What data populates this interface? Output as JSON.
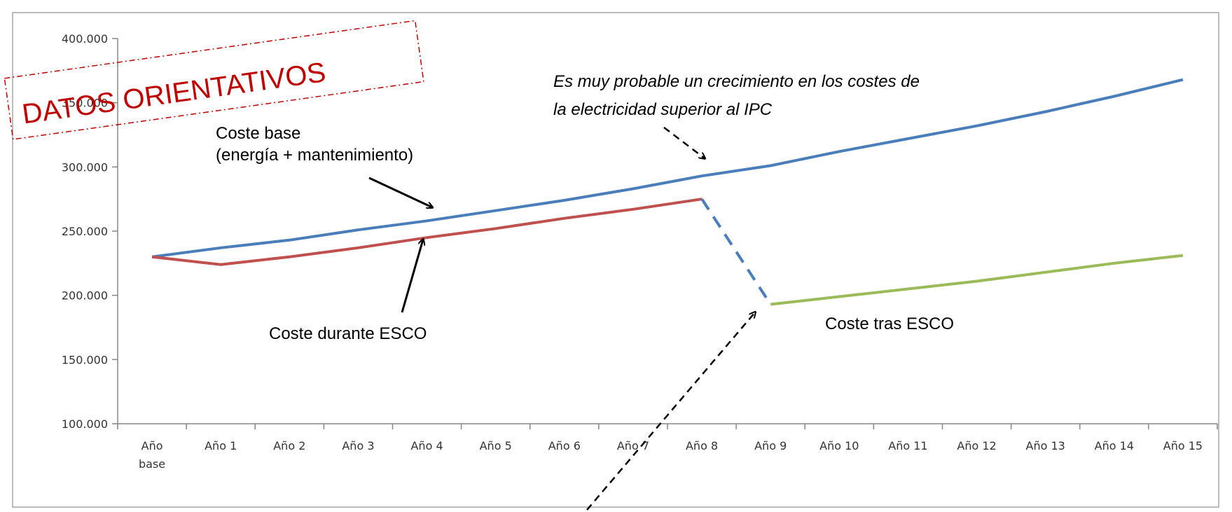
{
  "chart_data": {
    "type": "line",
    "categories": [
      "Año base",
      "Año 1",
      "Año 2",
      "Año 3",
      "Año 4",
      "Año 5",
      "Año 6",
      "Año 7",
      "Año 8",
      "Año 9",
      "Año 10",
      "Año 11",
      "Año 12",
      "Año 13",
      "Año 14",
      "Año 15"
    ],
    "y_ticks": [
      "100.000",
      "150.000",
      "200.000",
      "250.000",
      "300.000",
      "350.000",
      "400.000"
    ],
    "ylim": [
      100000,
      400000
    ],
    "grid": false,
    "legend": "none",
    "series": [
      {
        "key": "base",
        "color": "#4a7ebb",
        "values": [
          230000,
          237000,
          243000,
          251000,
          258000,
          266000,
          274000,
          283000,
          293000,
          301000,
          312000,
          322000,
          332000,
          343000,
          355000,
          368000
        ]
      },
      {
        "key": "durante",
        "color": "#c0504d",
        "values": [
          230000,
          224000,
          230000,
          237000,
          245000,
          252000,
          260000,
          267000,
          275000,
          null,
          null,
          null,
          null,
          null,
          null,
          null
        ]
      },
      {
        "key": "transicion",
        "color": "#4a7ebb",
        "dashed": true,
        "values": [
          null,
          null,
          null,
          null,
          null,
          null,
          null,
          null,
          275000,
          193000,
          null,
          null,
          null,
          null,
          null,
          null
        ]
      },
      {
        "key": "tras",
        "color": "#9bbb59",
        "values": [
          null,
          null,
          null,
          null,
          null,
          null,
          null,
          null,
          null,
          193000,
          199000,
          205000,
          211000,
          218000,
          225000,
          231000
        ]
      }
    ],
    "annotations": {
      "base_line1": "Coste base",
      "base_line2": "(energía + mantenimiento)",
      "durante": "Coste durante ESCO",
      "tras": "Coste tras ESCO",
      "ipc_line1": "Es muy probable un crecimiento en los costes de",
      "ipc_line2": "la electricidad superior al IPC"
    },
    "stamp": "DATOS ORIENTATIVOS"
  }
}
